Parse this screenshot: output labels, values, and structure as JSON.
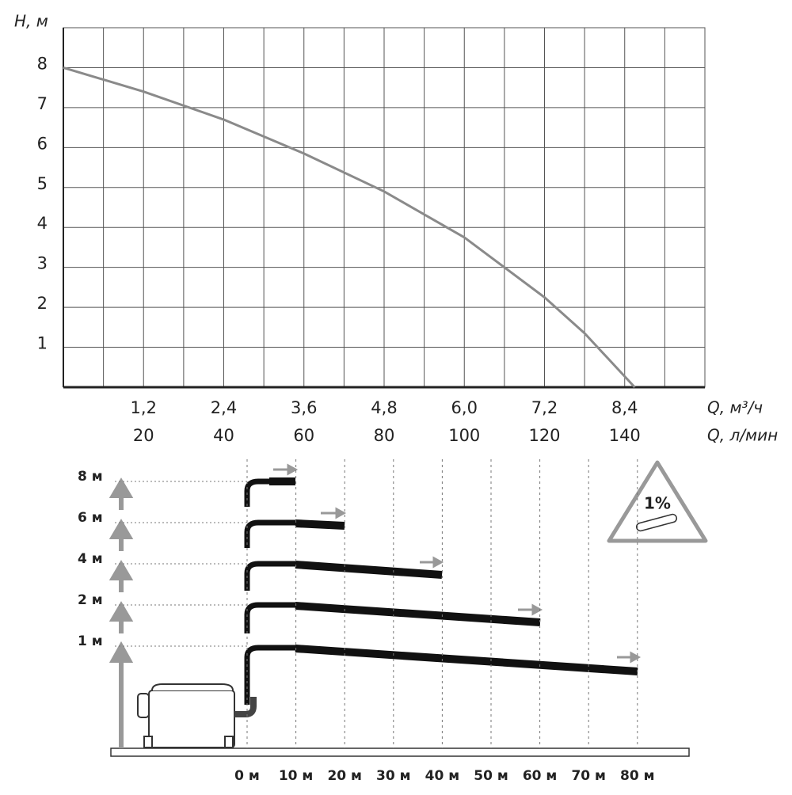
{
  "chart_data": {
    "type": "line",
    "y_label": "H, м",
    "x_label": "Q, м³/ч",
    "x2_label": "Q, л/мин",
    "x": [
      0,
      1.2,
      2.4,
      3.6,
      4.8,
      6.0,
      7.2,
      7.8,
      8.55
    ],
    "values": [
      8,
      7.4,
      6.7,
      5.85,
      4.9,
      3.75,
      2.25,
      1.35,
      0
    ],
    "color": "#8a8a8a",
    "xlim": [
      0,
      9.6
    ],
    "ylim": [
      0,
      9
    ],
    "xticks": [
      {
        "value": 1.2,
        "label": "1,2"
      },
      {
        "value": 2.4,
        "label": "2,4"
      },
      {
        "value": 3.6,
        "label": "3,6"
      },
      {
        "value": 4.8,
        "label": "4,8"
      },
      {
        "value": 6.0,
        "label": "6,0"
      },
      {
        "value": 7.2,
        "label": "7,2"
      },
      {
        "value": 8.4,
        "label": "8,4"
      }
    ],
    "xminor": [
      0.6,
      1.8,
      3.0,
      4.2,
      5.4,
      6.6,
      7.8,
      9.0
    ],
    "x2lim": [
      0,
      160
    ],
    "x2ticks": [
      20,
      40,
      60,
      80,
      100,
      120,
      140
    ],
    "yticks": [
      1,
      2,
      3,
      4,
      5,
      6,
      7,
      8
    ],
    "grid": true
  },
  "diagram": {
    "heights": [
      "8 м",
      "6 м",
      "4 м",
      "2 м",
      "1 м"
    ],
    "distances": [
      "0 м",
      "10 м",
      "20 м",
      "30 м",
      "40 м",
      "50 м",
      "60 м",
      "70 м",
      "80 м"
    ],
    "slope": "1%"
  }
}
